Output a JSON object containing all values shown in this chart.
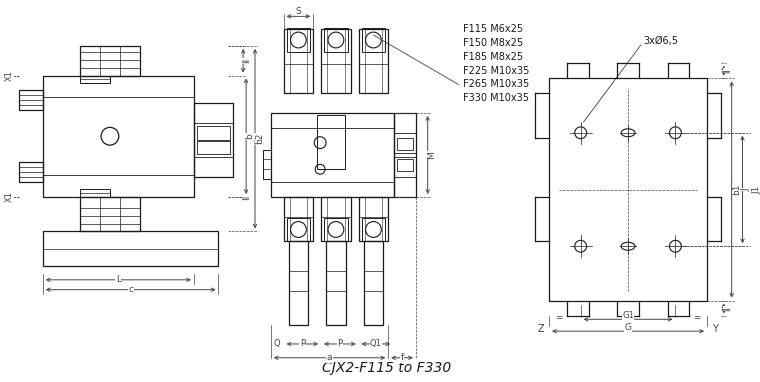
{
  "title": "CJX2-F115 to F330",
  "bg_color": "#ffffff",
  "line_color": "#1a1a1a",
  "dim_color": "#444444",
  "annotation_lines": [
    "F115 M6x25",
    "F150 M8x25",
    "F185 M8x25",
    "F225 M10x35",
    "F265 M10x35",
    "F330 M10x35"
  ]
}
